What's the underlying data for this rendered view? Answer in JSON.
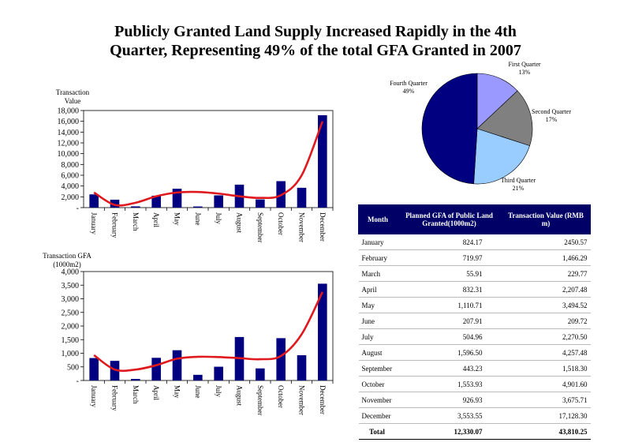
{
  "title": {
    "line1": "Publicly Granted Land Supply Increased Rapidly in the 4th",
    "line2": "Quarter, Representing 49% of the total GFA Granted in 2007"
  },
  "colors": {
    "bar": "#000080",
    "trend": "#e0191e",
    "q1": "#9999ff",
    "q2": "#808080",
    "q3": "#99ccff",
    "q4": "#000080"
  },
  "chart_data": [
    {
      "type": "bar",
      "ylabel_line1": "Transaction",
      "ylabel_line2": "Value",
      "categories": [
        "January",
        "February",
        "March",
        "April",
        "May",
        "June",
        "July",
        "August",
        "September",
        "October",
        "November",
        "December"
      ],
      "values": [
        2450.57,
        1466.29,
        229.77,
        2207.48,
        3494.52,
        209.72,
        2270.5,
        4257.48,
        1518.3,
        4901.6,
        3675.71,
        17128.3
      ],
      "trend": [
        2800,
        500,
        900,
        2100,
        2800,
        2900,
        2600,
        2100,
        1800,
        2300,
        6000,
        16000
      ],
      "ylim": [
        0,
        18000
      ],
      "yticks": [
        0,
        2000,
        4000,
        6000,
        8000,
        10000,
        12000,
        14000,
        16000,
        18000
      ],
      "ytick_labels": [
        "-",
        "2,000",
        "4,000",
        "6,000",
        "8,000",
        "10,000",
        "12,000",
        "14,000",
        "16,000",
        "18,000"
      ]
    },
    {
      "type": "bar",
      "ylabel_line1": "Transaction GFA",
      "ylabel_line2": "(1000m2)",
      "categories": [
        "January",
        "February",
        "March",
        "April",
        "May",
        "June",
        "July",
        "August",
        "September",
        "October",
        "November",
        "December"
      ],
      "values": [
        824.17,
        719.97,
        55.91,
        832.31,
        1110.71,
        207.91,
        504.96,
        1596.5,
        443.23,
        1553.93,
        926.93,
        3553.55
      ],
      "trend": [
        930,
        400,
        400,
        560,
        800,
        870,
        860,
        820,
        780,
        900,
        1700,
        3250
      ],
      "ylim": [
        0,
        4000
      ],
      "yticks": [
        0,
        500,
        1000,
        1500,
        2000,
        2500,
        3000,
        3500,
        4000
      ],
      "ytick_labels": [
        "-",
        "500",
        "1,000",
        "1,500",
        "2,000",
        "2,500",
        "3,000",
        "3,500",
        "4,000"
      ]
    },
    {
      "type": "pie",
      "slices": [
        {
          "name": "First Quarter",
          "pct_label": "13%",
          "value": 13
        },
        {
          "name": "Second Quarter",
          "pct_label": "17%",
          "value": 17
        },
        {
          "name": "Third Quarter",
          "pct_label": "21%",
          "value": 21
        },
        {
          "name": "Fourth Quarter",
          "pct_label": "49%",
          "value": 49
        }
      ]
    },
    {
      "type": "table",
      "headers": [
        "Month",
        "Planned GFA of Public Land Granted(1000m2)",
        "Transaction Value  (RMB m)"
      ],
      "rows": [
        [
          "January",
          "824.17",
          "2450.57"
        ],
        [
          "February",
          "719.97",
          "1,466.29"
        ],
        [
          "March",
          "55.91",
          "229.77"
        ],
        [
          "April",
          "832.31",
          "2,207.48"
        ],
        [
          "May",
          "1,110.71",
          "3,494.52"
        ],
        [
          "June",
          "207.91",
          "209.72"
        ],
        [
          "July",
          "504.96",
          "2,270.50"
        ],
        [
          "August",
          "1,596.50",
          "4,257.48"
        ],
        [
          "September",
          "443.23",
          "1,518.30"
        ],
        [
          "October",
          "1,553.93",
          "4,901.60"
        ],
        [
          "November",
          "926.93",
          "3,675.71"
        ],
        [
          "December",
          "3,553.55",
          "17,128.30"
        ]
      ],
      "total": [
        "Total",
        "12,330.07",
        "43,810.25"
      ]
    }
  ]
}
